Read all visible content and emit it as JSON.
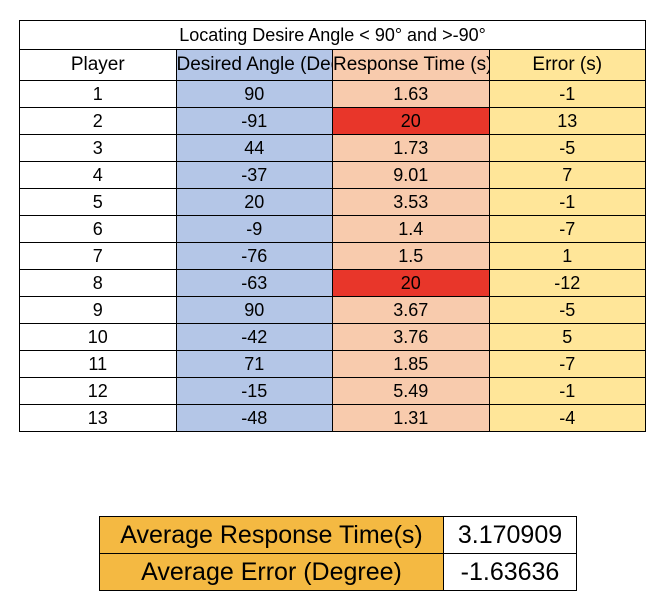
{
  "table": {
    "title": "Locating Desire Angle < 90° and >-90°",
    "headers": {
      "player": "Player",
      "angle": "Desired Angle (Degree)",
      "response": "Response Time (s)",
      "error": "Error (s)"
    },
    "rows": [
      {
        "player": "1",
        "angle": "90",
        "response": "1.63",
        "error": "-1",
        "flagged": false
      },
      {
        "player": "2",
        "angle": "-91",
        "response": "20",
        "error": "13",
        "flagged": true
      },
      {
        "player": "3",
        "angle": "44",
        "response": "1.73",
        "error": "-5",
        "flagged": false
      },
      {
        "player": "4",
        "angle": "-37",
        "response": "9.01",
        "error": "7",
        "flagged": false
      },
      {
        "player": "5",
        "angle": "20",
        "response": "3.53",
        "error": "-1",
        "flagged": false
      },
      {
        "player": "6",
        "angle": "-9",
        "response": "1.4",
        "error": "-7",
        "flagged": false
      },
      {
        "player": "7",
        "angle": "-76",
        "response": "1.5",
        "error": "1",
        "flagged": false
      },
      {
        "player": "8",
        "angle": "-63",
        "response": "20",
        "error": "-12",
        "flagged": true
      },
      {
        "player": "9",
        "angle": "90",
        "response": "3.67",
        "error": "-5",
        "flagged": false
      },
      {
        "player": "10",
        "angle": "-42",
        "response": "3.76",
        "error": "5",
        "flagged": false
      },
      {
        "player": "11",
        "angle": "71",
        "response": "1.85",
        "error": "-7",
        "flagged": false
      },
      {
        "player": "12",
        "angle": "-15",
        "response": "5.49",
        "error": "-1",
        "flagged": false
      },
      {
        "player": "13",
        "angle": "-48",
        "response": "1.31",
        "error": "-4",
        "flagged": false
      }
    ]
  },
  "summary": {
    "avg_response_label": "Average Response Time(s)",
    "avg_response_value": "3.170909",
    "avg_error_label": "Average Error (Degree)",
    "avg_error_value": "-1.63636"
  },
  "colors": {
    "angle_column": "#b4c6e7",
    "response_column": "#f8cbad",
    "error_column": "#ffe699",
    "flagged_cell": "#e8362a",
    "summary_label": "#f4b942"
  }
}
